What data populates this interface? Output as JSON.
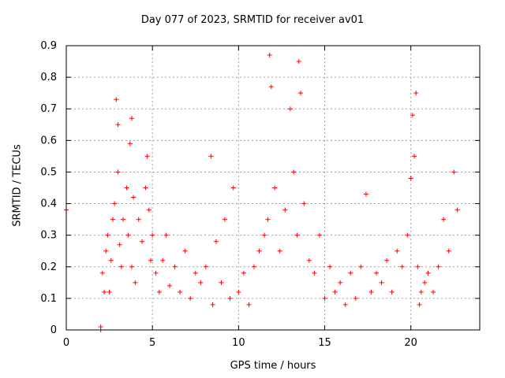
{
  "chart_data": {
    "type": "scatter",
    "title": "Day 077 of 2023, SRMTID for receiver av01",
    "xlabel": "GPS time / hours",
    "ylabel": "SRMTID / TECUs",
    "xlim": [
      0,
      24
    ],
    "ylim": [
      0,
      0.9
    ],
    "xticks": [
      0,
      5,
      10,
      15,
      20
    ],
    "yticks": [
      0,
      0.1,
      0.2,
      0.3,
      0.4,
      0.5,
      0.6,
      0.7,
      0.8,
      0.9
    ],
    "grid": true,
    "marker": "+",
    "color": "#ff0000",
    "series": [
      {
        "name": "SRMTID",
        "x": [
          0.0,
          2.0,
          2.0,
          2.1,
          2.2,
          2.3,
          2.4,
          2.5,
          2.6,
          2.7,
          2.8,
          2.9,
          3.0,
          3.0,
          3.1,
          3.2,
          3.3,
          3.5,
          3.6,
          3.7,
          3.8,
          3.8,
          3.9,
          4.0,
          4.2,
          4.4,
          4.6,
          4.7,
          4.8,
          4.9,
          5.0,
          5.2,
          5.4,
          5.6,
          5.8,
          6.0,
          6.3,
          6.6,
          6.9,
          7.2,
          7.5,
          7.8,
          8.1,
          8.4,
          8.5,
          8.7,
          9.0,
          9.2,
          9.5,
          9.7,
          10.0,
          10.3,
          10.6,
          10.9,
          11.2,
          11.5,
          11.7,
          11.8,
          11.9,
          12.1,
          12.4,
          12.7,
          13.0,
          13.2,
          13.4,
          13.5,
          13.6,
          13.8,
          14.1,
          14.4,
          14.7,
          15.0,
          15.3,
          15.6,
          15.9,
          16.2,
          16.5,
          16.8,
          17.1,
          17.4,
          17.7,
          18.0,
          18.3,
          18.6,
          18.9,
          19.2,
          19.5,
          19.8,
          20.0,
          20.1,
          20.2,
          20.3,
          20.4,
          20.5,
          20.6,
          20.8,
          21.0,
          21.3,
          21.6,
          21.9,
          22.2,
          22.5,
          22.7
        ],
        "y": [
          0.38,
          0.0,
          0.01,
          0.18,
          0.12,
          0.25,
          0.3,
          0.12,
          0.22,
          0.35,
          0.4,
          0.73,
          0.65,
          0.5,
          0.27,
          0.2,
          0.35,
          0.45,
          0.3,
          0.59,
          0.67,
          0.2,
          0.42,
          0.15,
          0.35,
          0.28,
          0.45,
          0.55,
          0.38,
          0.22,
          0.3,
          0.18,
          0.12,
          0.22,
          0.3,
          0.14,
          0.2,
          0.12,
          0.25,
          0.1,
          0.18,
          0.15,
          0.2,
          0.55,
          0.08,
          0.28,
          0.15,
          0.35,
          0.1,
          0.45,
          0.12,
          0.18,
          0.08,
          0.2,
          0.25,
          0.3,
          0.35,
          0.87,
          0.77,
          0.45,
          0.25,
          0.38,
          0.7,
          0.5,
          0.3,
          0.85,
          0.75,
          0.4,
          0.22,
          0.18,
          0.3,
          0.1,
          0.2,
          0.12,
          0.15,
          0.08,
          0.18,
          0.1,
          0.2,
          0.43,
          0.12,
          0.18,
          0.15,
          0.22,
          0.12,
          0.25,
          0.2,
          0.3,
          0.48,
          0.68,
          0.55,
          0.75,
          0.2,
          0.08,
          0.12,
          0.15,
          0.18,
          0.12,
          0.2,
          0.35,
          0.25,
          0.5,
          0.38
        ]
      }
    ]
  }
}
